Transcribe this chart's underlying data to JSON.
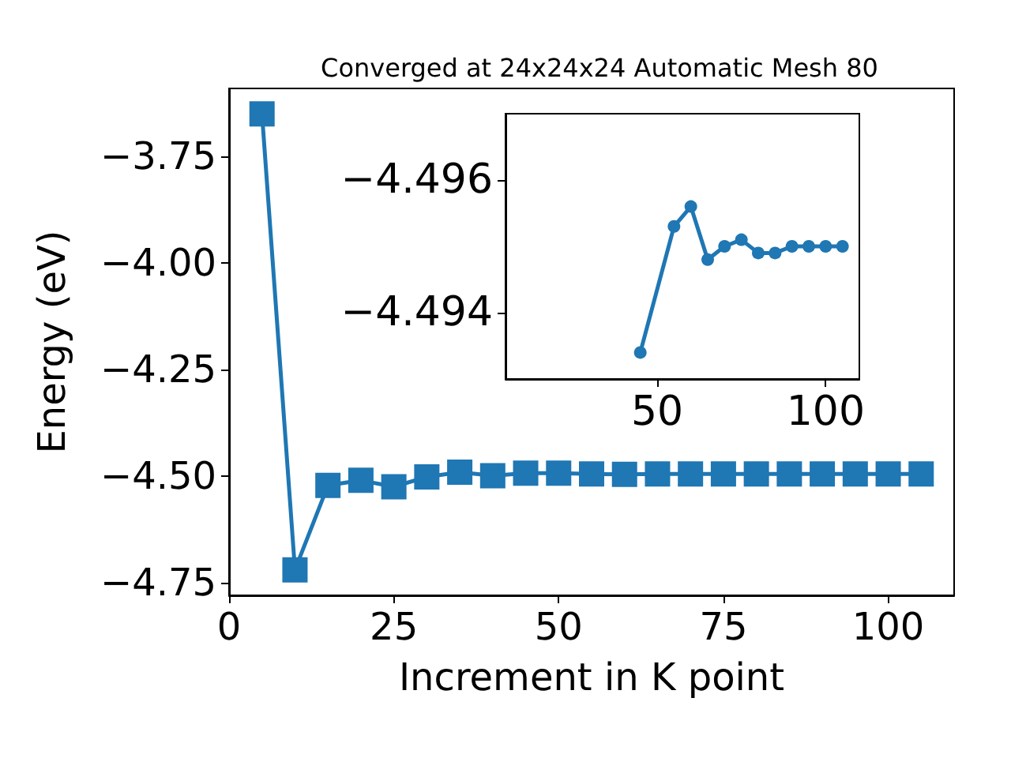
{
  "chart_data": [
    {
      "type": "line",
      "title": "Converged at 24x24x24 Automatic Mesh 80",
      "xlabel": "Increment in K point",
      "ylabel": "Energy (eV)",
      "marker": "square",
      "line_style": "solid",
      "x": [
        5,
        10,
        15,
        20,
        25,
        30,
        35,
        40,
        45,
        50,
        55,
        60,
        65,
        70,
        75,
        80,
        85,
        90,
        95,
        100,
        105
      ],
      "series": [
        {
          "color": "#1f77b4",
          "values": [
            -3.65,
            -4.72,
            -4.522,
            -4.51,
            -4.525,
            -4.502,
            -4.491,
            -4.499,
            -4.493,
            -4.493,
            -4.495,
            -4.496,
            -4.495,
            -4.495,
            -4.495,
            -4.495,
            -4.495,
            -4.495,
            -4.495,
            -4.495,
            -4.495
          ]
        }
      ],
      "xlim": [
        0,
        110
      ],
      "xticks": [
        0,
        25,
        50,
        75,
        100
      ],
      "ylim": [
        -4.78,
        -3.59
      ],
      "yticks": [
        {
          "value": -4.75,
          "label": "−4.75"
        },
        {
          "value": -4.5,
          "label": "−4.50"
        },
        {
          "value": -4.25,
          "label": "−4.25"
        },
        {
          "value": -4.0,
          "label": "−4.00"
        },
        {
          "value": -3.75,
          "label": "−3.75"
        }
      ]
    },
    {
      "type": "line",
      "marker": "circle",
      "line_style": "solid",
      "x": [
        45,
        55,
        60,
        65,
        70,
        75,
        80,
        85,
        90,
        95,
        100,
        105
      ],
      "series": [
        {
          "color": "#1f77b4",
          "values": [
            -4.4934,
            -4.4953,
            -4.4956,
            -4.4948,
            -4.495,
            -4.4951,
            -4.4949,
            -4.4949,
            -4.495,
            -4.495,
            -4.495,
            -4.495
          ]
        }
      ],
      "xlim": [
        5,
        110
      ],
      "xticks": [
        50,
        100
      ],
      "ylim": [
        -4.493,
        -4.497
      ],
      "yticks": [
        {
          "value": -4.496,
          "label": "−4.496"
        },
        {
          "value": -4.494,
          "label": "−4.494"
        }
      ]
    }
  ]
}
